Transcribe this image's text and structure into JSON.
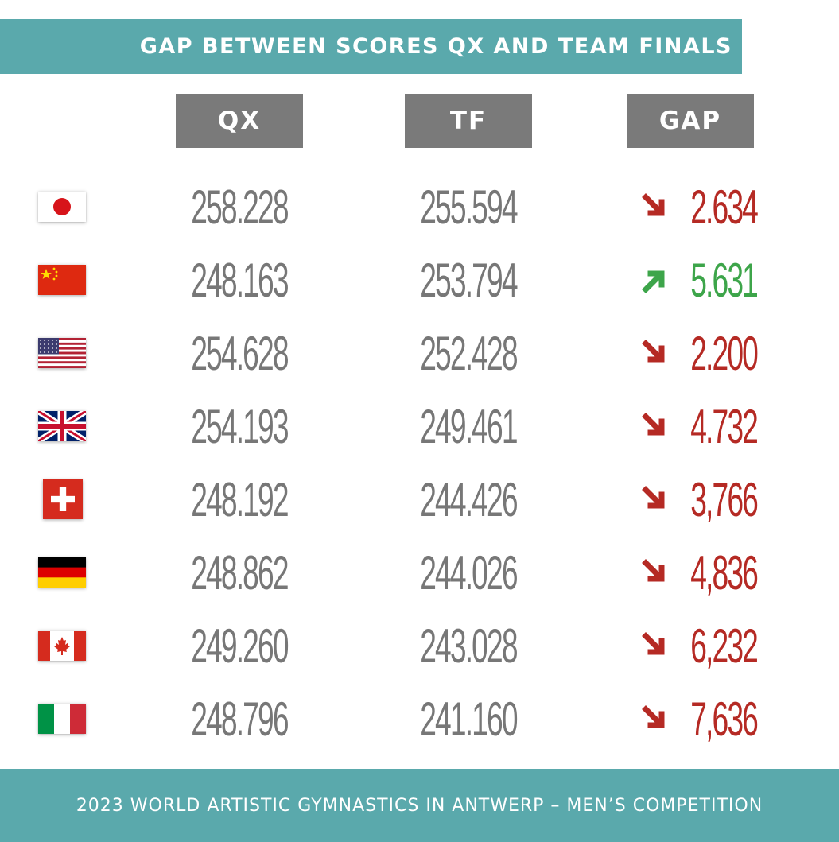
{
  "title": "GAP BETWEEN SCORES QX AND TEAM FINALS",
  "footer": "2023 WORLD ARTISTIC GYMNASTICS IN ANTWERP – MEN’S COMPETITION",
  "colors": {
    "teal": "#5aa9ac",
    "header_gray": "#7a7a7a",
    "number_gray": "#777777",
    "down": "#b52a24",
    "up": "#3da54a"
  },
  "chart_data": {
    "type": "table",
    "columns": [
      "QX",
      "TF",
      "GAP"
    ],
    "rows": [
      {
        "flag": "japan-flag-icon",
        "qx": "258.228",
        "tf": "255.594",
        "gap": "2.634",
        "direction": "down"
      },
      {
        "flag": "china-flag-icon",
        "qx": "248.163",
        "tf": "253.794",
        "gap": "5.631",
        "direction": "up"
      },
      {
        "flag": "usa-flag-icon",
        "qx": "254.628",
        "tf": "252.428",
        "gap": "2.200",
        "direction": "down"
      },
      {
        "flag": "great-britain-flag-icon",
        "qx": "254.193",
        "tf": "249.461",
        "gap": "4.732",
        "direction": "down"
      },
      {
        "flag": "switzerland-flag-icon",
        "qx": "248.192",
        "tf": "244.426",
        "gap": "3,766",
        "direction": "down"
      },
      {
        "flag": "germany-flag-icon",
        "qx": "248.862",
        "tf": "244.026",
        "gap": "4,836",
        "direction": "down"
      },
      {
        "flag": "canada-flag-icon",
        "qx": "249.260",
        "tf": "243.028",
        "gap": "6,232",
        "direction": "down"
      },
      {
        "flag": "italy-flag-icon",
        "qx": "248.796",
        "tf": "241.160",
        "gap": "7,636",
        "direction": "down"
      }
    ]
  }
}
